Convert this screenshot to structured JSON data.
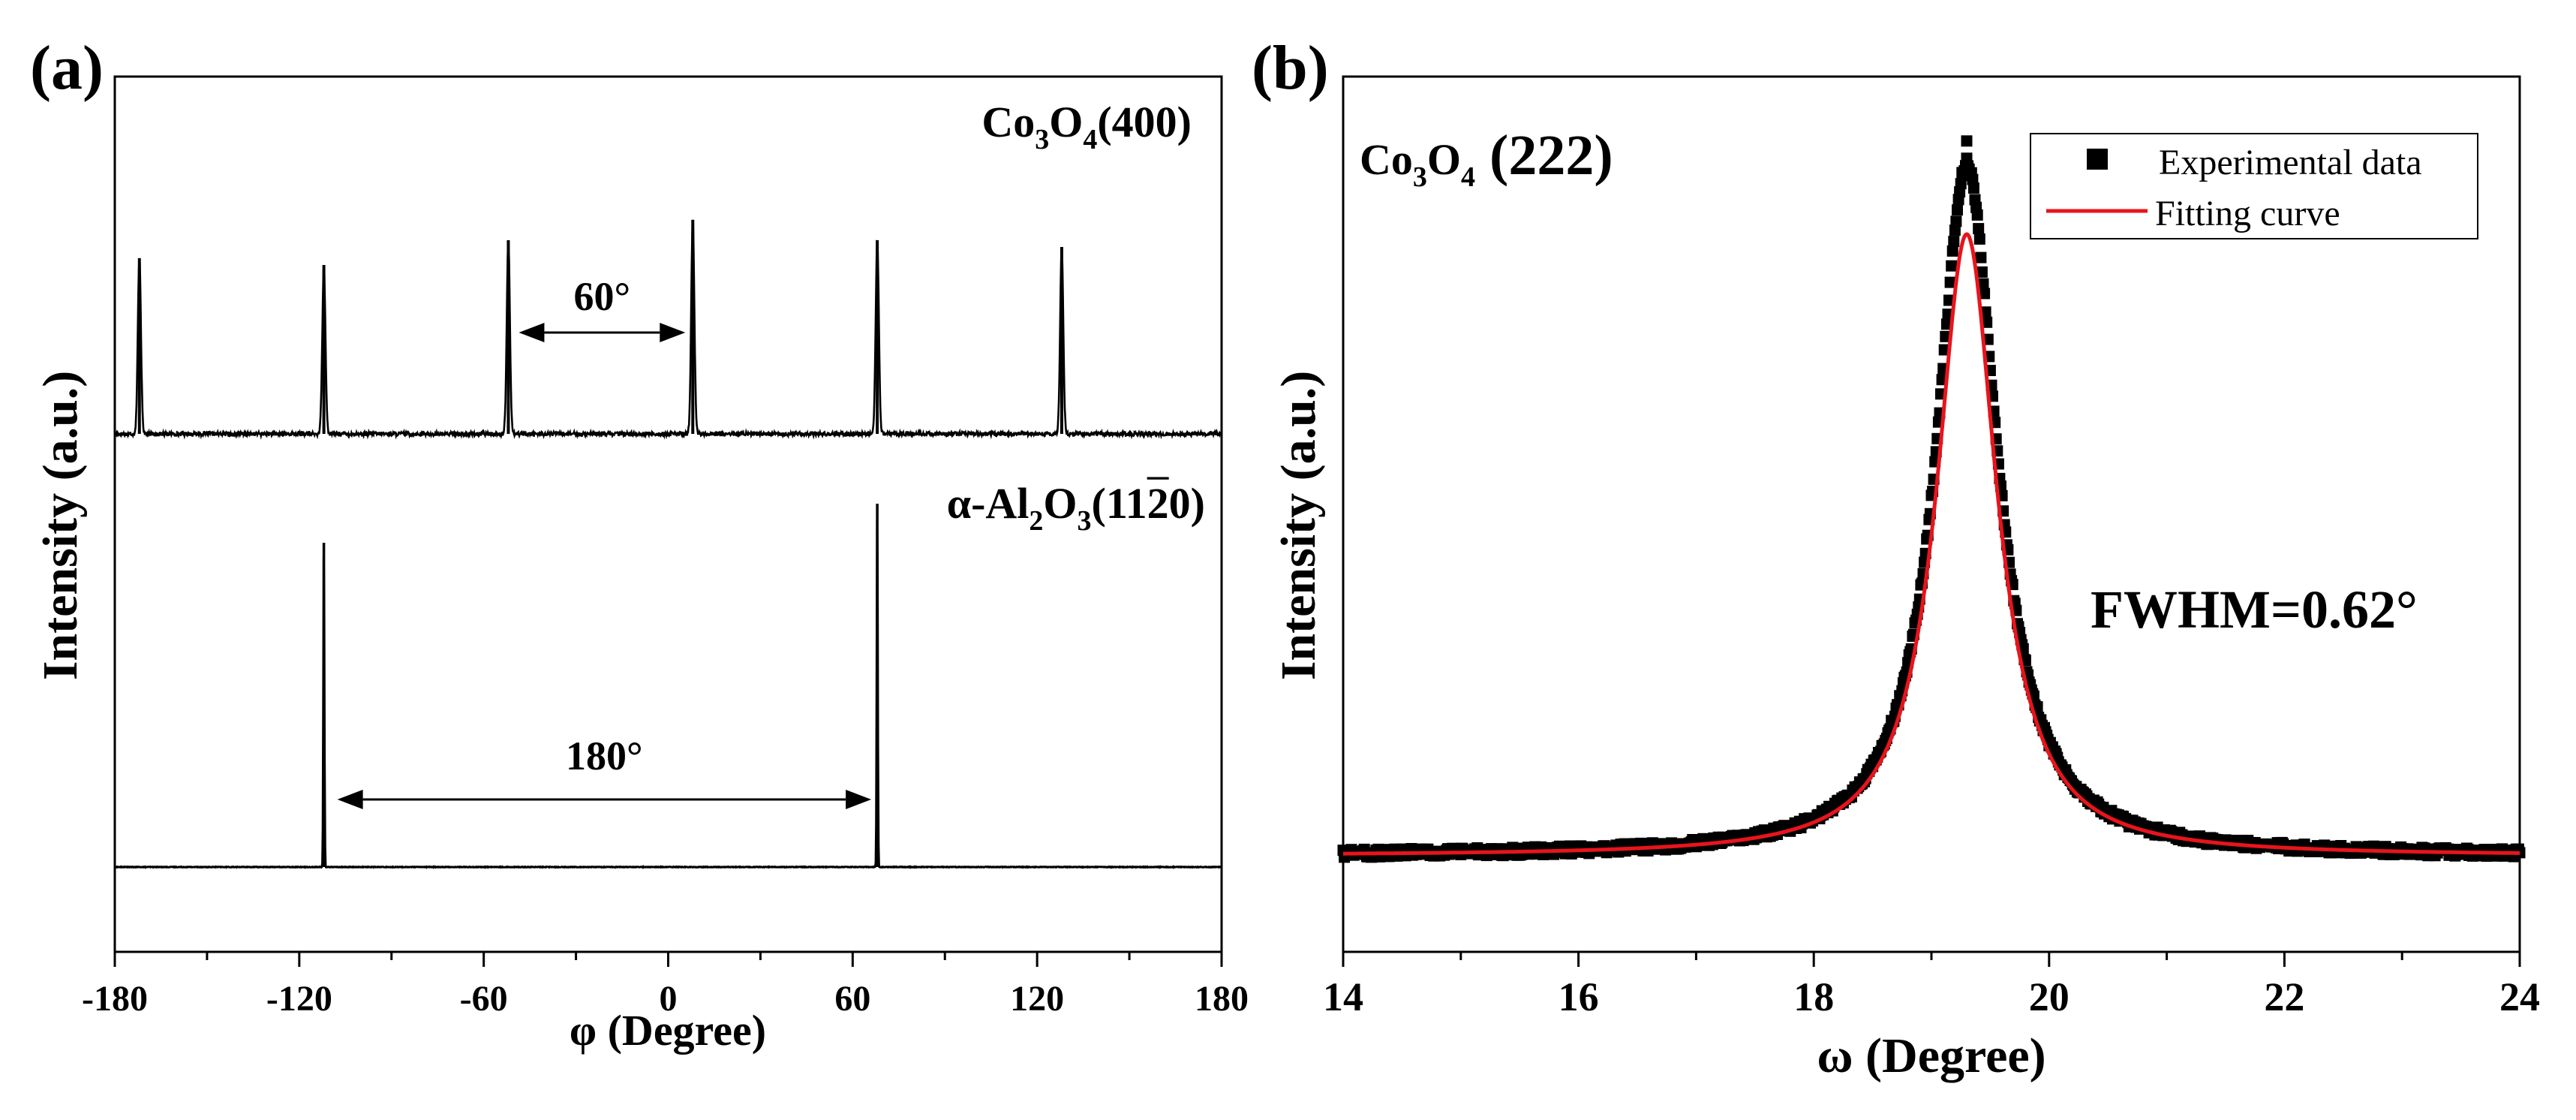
{
  "chart_data": [
    {
      "panel_label": "(a)",
      "type": "line",
      "xlabel": "φ (Degree)",
      "ylabel": "Intensity (a.u.)",
      "xlim": [
        -180,
        180
      ],
      "xticks": [
        -180,
        -120,
        -60,
        0,
        60,
        120,
        180
      ],
      "xticklabels": [
        "-180",
        "-120",
        "-60",
        "0",
        "60",
        "120",
        "180"
      ],
      "y_ticks_shown": false,
      "series": [
        {
          "name": "Co3O4(400)",
          "label_parts": [
            "Co",
            "3",
            "O",
            "4",
            "(400)"
          ],
          "baseline_relative": 1.0,
          "peaks": [
            {
              "phi": -172,
              "height": 0.78
            },
            {
              "phi": -112,
              "height": 0.75
            },
            {
              "phi": -52,
              "height": 0.86
            },
            {
              "phi": 8,
              "height": 0.95
            },
            {
              "phi": 68,
              "height": 0.86
            },
            {
              "phi": 128,
              "height": 0.83
            }
          ],
          "peak_width": 1.2,
          "color": "#000000"
        },
        {
          "name": "α-Al2O3(11-20)",
          "label_parts": [
            "α-Al",
            "2",
            "O",
            "3",
            "(11",
            "2",
            "0)"
          ],
          "baseline_relative": 0.0,
          "peaks": [
            {
              "phi": -112,
              "height": 1.08
            },
            {
              "phi": 68,
              "height": 1.21
            }
          ],
          "peak_width": 0.4,
          "color": "#000000"
        }
      ],
      "annotations": [
        {
          "text": "60°",
          "from": -52,
          "to": 8,
          "series": "Co3O4(400)"
        },
        {
          "text": "180°",
          "from": -112,
          "to": 68,
          "series": "α-Al2O3(11-20)"
        }
      ]
    },
    {
      "panel_label": "(b)",
      "type": "scatter",
      "title_parts": [
        "Co",
        "3",
        "O",
        "4",
        " (222)"
      ],
      "xlabel": "ω (Degree)",
      "ylabel": "Intensity (a.u.)",
      "xlim": [
        14,
        24
      ],
      "xticks": [
        14,
        16,
        18,
        20,
        22,
        24
      ],
      "xticklabels": [
        "14",
        "16",
        "18",
        "20",
        "22",
        "24"
      ],
      "y_ticks_shown": false,
      "rocking_curve": {
        "center": 19.3,
        "fwhm": 0.62,
        "baseline": 0.0,
        "amplitude": 1.0
      },
      "series": [
        {
          "name": "Experimental data",
          "marker": "square",
          "color": "#000000"
        },
        {
          "name": "Fitting curve",
          "marker": "line",
          "color": "#e8141c"
        }
      ],
      "legend_position": "top-right",
      "annotation": "FWHM=0.62°"
    }
  ]
}
